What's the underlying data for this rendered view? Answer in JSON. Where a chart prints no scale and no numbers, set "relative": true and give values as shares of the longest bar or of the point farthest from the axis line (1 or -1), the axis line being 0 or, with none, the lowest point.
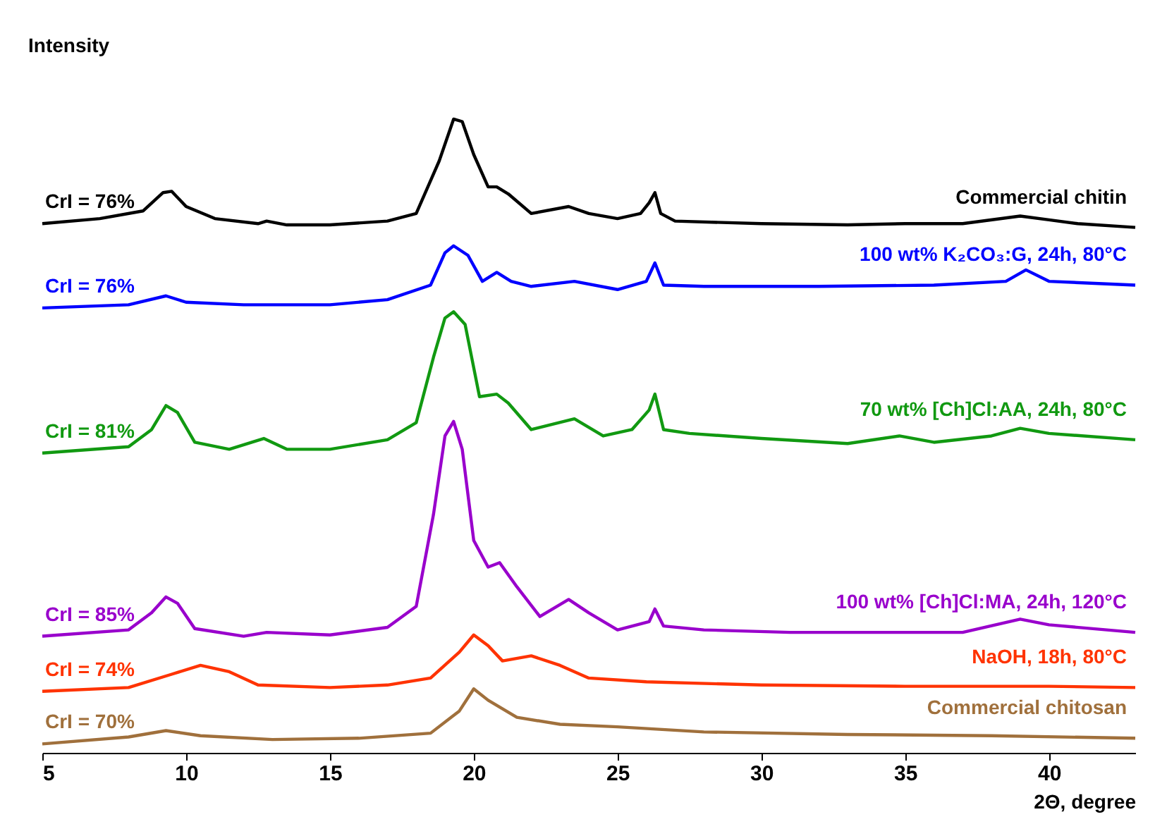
{
  "chart_data": {
    "type": "line",
    "relative": true,
    "xlabel": "2Θ, degree",
    "ylabel": "Intensity",
    "xlim": [
      5,
      43
    ],
    "xticks": [
      5,
      10,
      15,
      20,
      25,
      30,
      35,
      40
    ],
    "grid": false,
    "legend": false,
    "marker": "none",
    "line_style": "solid",
    "annotations": [
      "CrI = 76%",
      "CrI = 76%",
      "CrI = 81%",
      "CrI = 85%",
      "CrI = 74%",
      "CrI = 70%"
    ],
    "series": [
      {
        "name": "Commercial chitin",
        "color": "#000000",
        "x": [
          5,
          7,
          8.5,
          9.2,
          9.5,
          10,
          11,
          12.5,
          12.8,
          13.5,
          15,
          17,
          18,
          18.8,
          19.3,
          19.6,
          20,
          20.5,
          20.8,
          21.2,
          22,
          23.3,
          24,
          25,
          25.8,
          26.1,
          26.3,
          26.5,
          27,
          30,
          33,
          35,
          37,
          39,
          40,
          41,
          43
        ],
        "values": [
          0.835,
          0.843,
          0.855,
          0.884,
          0.886,
          0.862,
          0.843,
          0.835,
          0.839,
          0.833,
          0.833,
          0.839,
          0.851,
          0.934,
          1.0,
          0.996,
          0.944,
          0.893,
          0.893,
          0.882,
          0.851,
          0.862,
          0.851,
          0.843,
          0.851,
          0.868,
          0.884,
          0.851,
          0.839,
          0.835,
          0.833,
          0.835,
          0.835,
          0.847,
          0.841,
          0.835,
          0.829
        ]
      },
      {
        "name": "100 wt% K₂CO₃:G, 24h, 80°C",
        "color": "#0000ff",
        "x": [
          5,
          8,
          9.3,
          10,
          12,
          15,
          17,
          18.5,
          19,
          19.3,
          19.8,
          20.3,
          20.8,
          21.3,
          22,
          23.5,
          25,
          26,
          26.3,
          26.6,
          28,
          32,
          36,
          38.5,
          39.2,
          40,
          43
        ],
        "values": [
          0.702,
          0.707,
          0.721,
          0.711,
          0.707,
          0.707,
          0.715,
          0.738,
          0.789,
          0.8,
          0.785,
          0.744,
          0.758,
          0.744,
          0.736,
          0.744,
          0.731,
          0.744,
          0.773,
          0.738,
          0.736,
          0.736,
          0.738,
          0.744,
          0.762,
          0.744,
          0.738
        ]
      },
      {
        "name": "70 wt% [Ch]Cl:AA, 24h, 80°C",
        "color": "#119911",
        "x": [
          5,
          8,
          8.8,
          9.3,
          9.7,
          10.3,
          11.5,
          12.7,
          13.5,
          15,
          17,
          18,
          18.6,
          19,
          19.3,
          19.7,
          20.2,
          20.8,
          21.2,
          22,
          23.5,
          24.5,
          25.5,
          26.1,
          26.3,
          26.6,
          27.5,
          30,
          33,
          34.8,
          36,
          38,
          39,
          40,
          43
        ],
        "values": [
          0.473,
          0.483,
          0.51,
          0.548,
          0.537,
          0.49,
          0.479,
          0.496,
          0.479,
          0.479,
          0.494,
          0.521,
          0.624,
          0.686,
          0.696,
          0.676,
          0.562,
          0.566,
          0.552,
          0.51,
          0.527,
          0.5,
          0.51,
          0.541,
          0.566,
          0.51,
          0.504,
          0.496,
          0.488,
          0.5,
          0.49,
          0.5,
          0.512,
          0.504,
          0.494
        ]
      },
      {
        "name": "100 wt% [Ch]Cl:MA, 24h, 120°C",
        "color": "#9900cc",
        "x": [
          5,
          8,
          8.8,
          9.3,
          9.7,
          10.3,
          12,
          12.8,
          15,
          17,
          18,
          18.6,
          19,
          19.3,
          19.6,
          20,
          20.5,
          20.9,
          21.5,
          22.3,
          23.3,
          24,
          25,
          26.1,
          26.3,
          26.6,
          28,
          31,
          34,
          37,
          39,
          40,
          43
        ],
        "values": [
          0.184,
          0.194,
          0.221,
          0.246,
          0.236,
          0.196,
          0.184,
          0.19,
          0.186,
          0.198,
          0.231,
          0.376,
          0.5,
          0.523,
          0.479,
          0.335,
          0.293,
          0.3,
          0.262,
          0.215,
          0.242,
          0.221,
          0.194,
          0.207,
          0.227,
          0.2,
          0.194,
          0.19,
          0.19,
          0.19,
          0.211,
          0.202,
          0.19
        ]
      },
      {
        "name": "NaOH, 18h, 80°C",
        "color": "#ff3300",
        "x": [
          5,
          8,
          9.5,
          10.5,
          11.5,
          12.5,
          15,
          17,
          18.5,
          19.5,
          20,
          20.5,
          21,
          22,
          23,
          24,
          26,
          30,
          35,
          40,
          43
        ],
        "values": [
          0.097,
          0.103,
          0.124,
          0.138,
          0.128,
          0.107,
          0.103,
          0.107,
          0.118,
          0.159,
          0.186,
          0.169,
          0.145,
          0.153,
          0.138,
          0.118,
          0.112,
          0.107,
          0.105,
          0.105,
          0.103
        ]
      },
      {
        "name": "Commercial chitosan",
        "color": "#a0703c",
        "x": [
          5,
          8,
          9.3,
          10.5,
          13,
          16,
          18.5,
          19.5,
          20,
          20.5,
          21.5,
          23,
          25,
          28,
          33,
          38,
          43
        ],
        "values": [
          0.014,
          0.025,
          0.035,
          0.027,
          0.021,
          0.023,
          0.031,
          0.066,
          0.101,
          0.083,
          0.056,
          0.045,
          0.041,
          0.033,
          0.029,
          0.027,
          0.023
        ]
      }
    ]
  }
}
